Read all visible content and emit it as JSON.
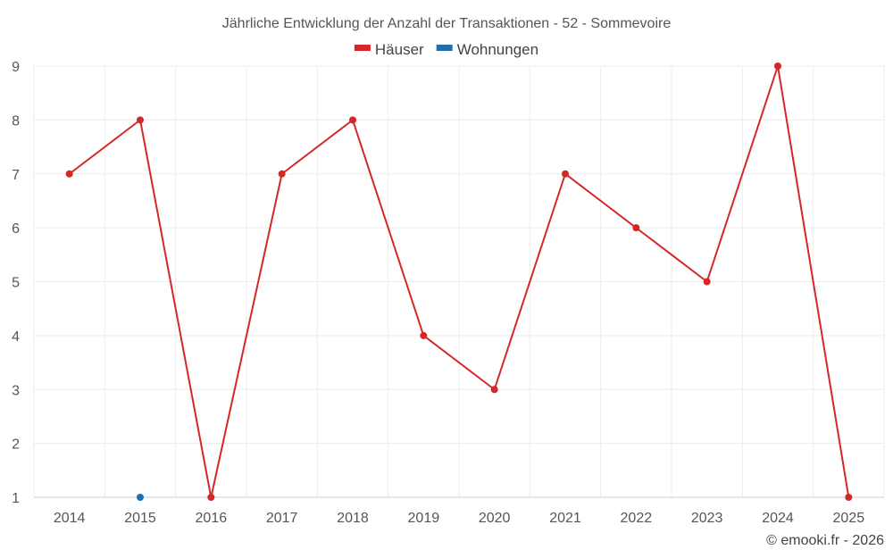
{
  "chart_data": {
    "type": "line",
    "title": "Jährliche Entwicklung der Anzahl der Transaktionen - 52 - Sommevoire",
    "categories": [
      "2014",
      "2015",
      "2016",
      "2017",
      "2018",
      "2019",
      "2020",
      "2021",
      "2022",
      "2023",
      "2024",
      "2025"
    ],
    "ylim": [
      1,
      9
    ],
    "yticks": [
      1,
      2,
      3,
      4,
      5,
      6,
      7,
      8,
      9
    ],
    "grid": true,
    "legend_position": "top-center",
    "series": [
      {
        "name": "Häuser",
        "color": "#d62728",
        "values": [
          7,
          8,
          1,
          7,
          8,
          4,
          3,
          7,
          6,
          5,
          9,
          1
        ]
      },
      {
        "name": "Wohnungen",
        "color": "#1f6fa8",
        "values": [
          null,
          1,
          null,
          null,
          null,
          null,
          null,
          null,
          null,
          null,
          null,
          null
        ]
      }
    ],
    "credit": "© emooki.fr - 2026"
  }
}
